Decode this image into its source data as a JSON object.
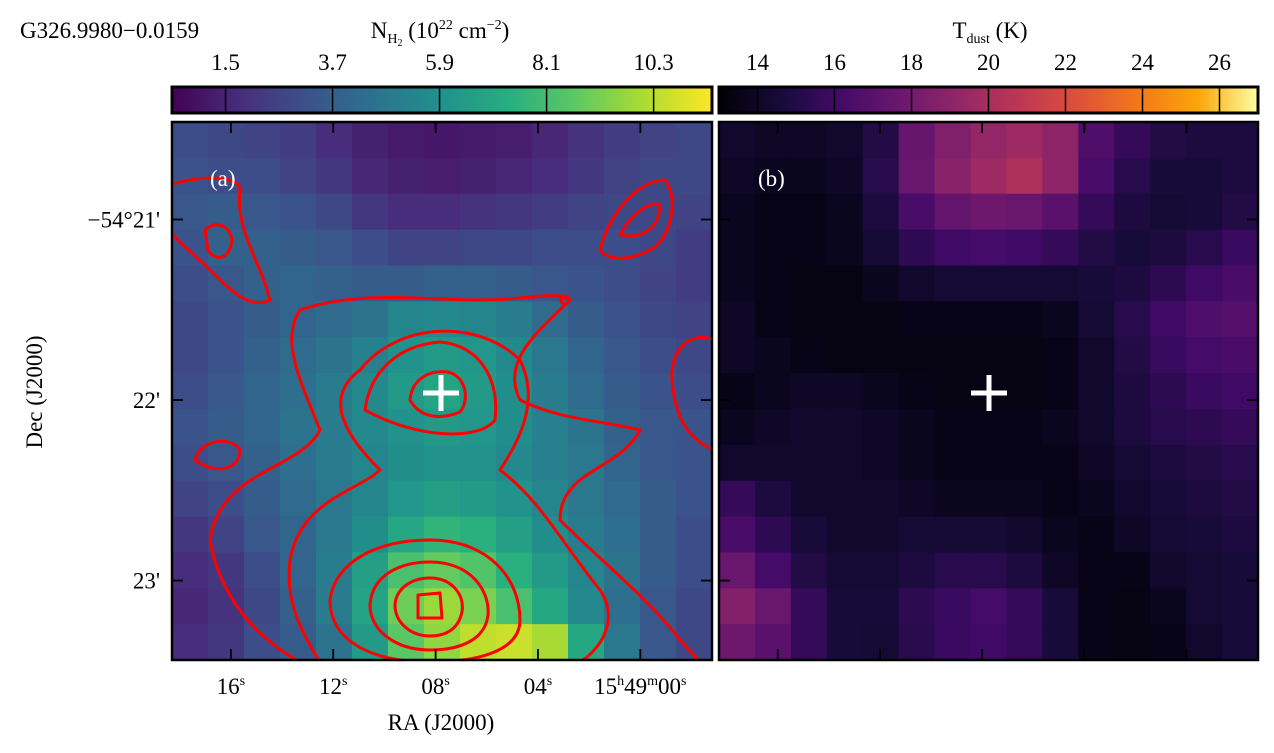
{
  "chart_data": [
    {
      "type": "heatmap",
      "title": "G326.9980−0.0159",
      "colorbar_label": [
        "N",
        "H",
        "2",
        " (10",
        "22",
        " cm",
        "−2",
        ")"
      ],
      "colormap": "viridis",
      "clim": [
        0.4,
        11.5
      ],
      "cticks": [
        1.5,
        3.7,
        5.9,
        8.1,
        10.3
      ],
      "panel_label": "(a)",
      "xlabel": "RA (J2000)",
      "ylabel": "Dec (J2000)",
      "xlim": [
        18.3,
        -2.8
      ],
      "ylim": [
        23.44,
        20.46
      ],
      "xticks": [
        {
          "value": 16,
          "label": [
            "16",
            "s"
          ]
        },
        {
          "value": 12,
          "label": [
            "12",
            "s"
          ]
        },
        {
          "value": 8,
          "label": [
            "08",
            "s"
          ]
        },
        {
          "value": 4,
          "label": [
            "04",
            "s"
          ]
        },
        {
          "value": 0,
          "label": [
            "15",
            "h",
            "49",
            "m",
            "00",
            "s"
          ]
        }
      ],
      "yticks": [
        {
          "value": 21,
          "label": "−54°21'"
        },
        {
          "value": 22,
          "label": "22'"
        },
        {
          "value": 23,
          "label": "23'"
        }
      ],
      "z": [
        [
          3.0,
          2.8,
          2.6,
          2.4,
          1.8,
          1.4,
          1.2,
          1.1,
          1.2,
          1.3,
          1.6,
          2.0,
          2.4,
          2.6,
          2.8
        ],
        [
          3.2,
          3.0,
          3.0,
          2.6,
          2.2,
          1.6,
          1.4,
          1.3,
          1.4,
          1.6,
          1.8,
          2.2,
          2.6,
          2.8,
          2.8
        ],
        [
          3.4,
          3.6,
          3.4,
          3.2,
          2.8,
          2.2,
          1.8,
          1.8,
          2.0,
          2.2,
          2.4,
          2.6,
          2.8,
          2.8,
          2.6
        ],
        [
          3.2,
          3.8,
          3.8,
          3.6,
          3.4,
          3.0,
          2.6,
          2.6,
          2.8,
          2.8,
          3.0,
          3.0,
          3.0,
          2.8,
          2.4
        ],
        [
          3.0,
          3.4,
          3.8,
          4.0,
          3.8,
          3.6,
          3.6,
          3.8,
          3.8,
          3.6,
          3.4,
          3.2,
          3.0,
          2.6,
          2.4
        ],
        [
          2.8,
          3.2,
          3.6,
          4.0,
          4.2,
          4.6,
          5.4,
          5.6,
          5.4,
          5.0,
          4.2,
          3.6,
          3.2,
          2.8,
          2.6
        ],
        [
          2.8,
          3.2,
          3.8,
          4.2,
          4.6,
          5.2,
          6.0,
          6.4,
          6.2,
          5.6,
          4.8,
          4.0,
          3.4,
          3.0,
          2.8
        ],
        [
          3.0,
          3.4,
          4.0,
          4.4,
          5.0,
          5.6,
          6.4,
          6.8,
          6.4,
          5.8,
          5.0,
          4.2,
          3.6,
          3.2,
          3.0
        ],
        [
          3.2,
          3.6,
          4.0,
          4.6,
          5.0,
          5.6,
          6.0,
          6.4,
          6.2,
          5.8,
          5.2,
          4.6,
          3.8,
          3.4,
          3.2
        ],
        [
          3.0,
          3.4,
          3.8,
          4.4,
          5.0,
          5.4,
          5.8,
          6.0,
          6.0,
          5.6,
          5.2,
          4.8,
          4.0,
          3.4,
          3.2
        ],
        [
          2.6,
          3.0,
          3.6,
          4.2,
          4.8,
          5.4,
          6.2,
          6.6,
          6.4,
          6.0,
          5.4,
          4.8,
          4.2,
          3.6,
          3.2
        ],
        [
          2.2,
          2.6,
          3.4,
          4.0,
          4.8,
          5.8,
          7.0,
          7.6,
          7.4,
          6.6,
          5.8,
          5.0,
          4.4,
          3.6,
          3.0
        ],
        [
          1.8,
          2.2,
          3.0,
          4.0,
          5.0,
          6.6,
          8.2,
          8.8,
          8.4,
          7.4,
          6.4,
          5.4,
          4.6,
          3.6,
          3.0
        ],
        [
          1.6,
          2.0,
          2.8,
          3.8,
          5.0,
          6.8,
          9.0,
          9.8,
          9.2,
          8.2,
          7.0,
          5.6,
          4.4,
          3.4,
          2.8
        ],
        [
          1.8,
          2.2,
          3.0,
          3.6,
          4.6,
          6.4,
          8.6,
          9.6,
          10.4,
          10.6,
          10.0,
          7.0,
          4.8,
          3.4,
          2.8
        ]
      ]
    },
    {
      "type": "heatmap",
      "colorbar_label": [
        "T",
        "dust",
        " (K)"
      ],
      "colormap": "inferno",
      "clim": [
        13,
        27
      ],
      "cticks": [
        14,
        16,
        18,
        20,
        22,
        24,
        26
      ],
      "panel_label": "(b)",
      "z": [
        [
          14.2,
          14.0,
          14.0,
          14.2,
          15.0,
          17.5,
          18.5,
          19.2,
          19.6,
          19.0,
          16.6,
          15.6,
          15.0,
          14.8,
          14.8
        ],
        [
          14.0,
          13.8,
          13.8,
          14.0,
          15.2,
          17.6,
          18.8,
          19.6,
          20.2,
          19.0,
          16.4,
          15.2,
          14.6,
          14.6,
          14.8
        ],
        [
          13.8,
          13.6,
          13.6,
          13.8,
          14.8,
          16.4,
          17.4,
          17.8,
          17.6,
          17.0,
          15.6,
          14.8,
          14.4,
          14.6,
          15.0
        ],
        [
          13.8,
          13.6,
          13.6,
          13.8,
          14.4,
          15.4,
          16.0,
          16.2,
          16.0,
          15.6,
          15.0,
          14.6,
          14.8,
          15.2,
          15.8
        ],
        [
          13.8,
          13.6,
          13.4,
          13.4,
          13.8,
          14.2,
          14.4,
          14.4,
          14.4,
          14.4,
          14.6,
          14.8,
          15.4,
          16.0,
          16.4
        ],
        [
          14.0,
          13.6,
          13.4,
          13.4,
          13.4,
          13.6,
          13.6,
          13.6,
          13.6,
          13.8,
          14.4,
          15.2,
          16.0,
          16.6,
          16.8
        ],
        [
          14.0,
          13.8,
          13.6,
          13.4,
          13.4,
          13.4,
          13.4,
          13.4,
          13.4,
          13.6,
          14.2,
          15.0,
          15.8,
          16.2,
          16.4
        ],
        [
          13.6,
          13.8,
          14.0,
          14.0,
          13.8,
          13.6,
          13.4,
          13.4,
          13.4,
          13.6,
          14.2,
          14.8,
          15.4,
          15.8,
          16.0
        ],
        [
          13.8,
          14.0,
          14.2,
          14.2,
          14.0,
          13.8,
          13.6,
          13.6,
          13.6,
          13.8,
          14.2,
          14.8,
          15.2,
          15.4,
          15.6
        ],
        [
          14.2,
          14.2,
          14.2,
          14.2,
          14.0,
          13.8,
          13.6,
          13.6,
          13.6,
          13.6,
          14.0,
          14.4,
          14.8,
          15.0,
          15.2
        ],
        [
          15.6,
          14.8,
          14.2,
          14.2,
          14.2,
          14.0,
          13.8,
          13.8,
          13.8,
          13.6,
          13.8,
          14.2,
          14.6,
          14.8,
          15.0
        ],
        [
          16.4,
          15.4,
          14.6,
          14.2,
          14.2,
          14.4,
          14.4,
          14.4,
          14.2,
          13.8,
          13.6,
          14.0,
          14.4,
          14.6,
          14.8
        ],
        [
          17.6,
          16.2,
          15.0,
          14.4,
          14.4,
          14.8,
          15.2,
          15.2,
          14.8,
          14.0,
          13.6,
          13.6,
          14.2,
          14.4,
          14.6
        ],
        [
          18.6,
          17.6,
          15.6,
          14.6,
          14.6,
          15.4,
          15.8,
          16.2,
          15.6,
          14.6,
          13.6,
          13.4,
          13.8,
          14.4,
          14.6
        ],
        [
          17.8,
          17.0,
          15.6,
          14.6,
          14.4,
          15.2,
          15.8,
          16.0,
          15.6,
          14.6,
          13.6,
          13.4,
          13.6,
          14.2,
          14.6
        ]
      ]
    }
  ]
}
